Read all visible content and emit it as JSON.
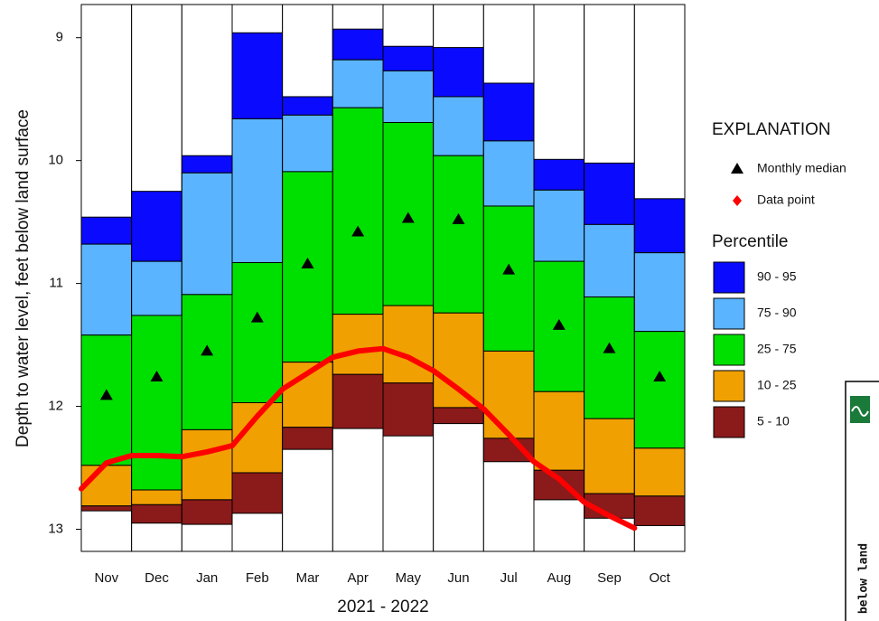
{
  "chart_data": {
    "type": "percentile",
    "x_label": "2021 - 2022",
    "y_label": "Depth to water level, feet below land surface",
    "categories": [
      "Nov",
      "Dec",
      "Jan",
      "Feb",
      "Mar",
      "Apr",
      "May",
      "Jun",
      "Jul",
      "Aug",
      "Sep",
      "Oct"
    ],
    "ylim": [
      8.73,
      13.18
    ],
    "y_inverted": true,
    "yticks": [
      9,
      10,
      11,
      12,
      13
    ],
    "legend_title": "EXPLANATION",
    "percentile_title": "Percentile",
    "series": [
      {
        "name": "90 - 95",
        "color": "#0a0aff",
        "values": [
          10.46,
          10.25,
          9.96,
          8.96,
          9.48,
          8.93,
          9.07,
          9.08,
          9.37,
          9.99,
          10.02,
          10.31
        ]
      },
      {
        "name": "75 - 90",
        "color": "#5ab4ff",
        "values": [
          10.68,
          10.82,
          10.1,
          9.66,
          9.63,
          9.18,
          9.27,
          9.48,
          9.84,
          10.24,
          10.52,
          10.75
        ]
      },
      {
        "name": "25 - 75",
        "color": "#00e000",
        "values": [
          11.42,
          11.26,
          11.09,
          10.83,
          10.09,
          9.57,
          9.69,
          9.96,
          10.37,
          10.82,
          11.11,
          11.39
        ]
      },
      {
        "name": "10 - 25",
        "color": "#f0a000",
        "values": [
          12.48,
          12.68,
          12.19,
          11.97,
          11.64,
          11.25,
          11.18,
          11.24,
          11.55,
          11.88,
          12.1,
          12.34
        ]
      },
      {
        "name": "5 - 10",
        "color": "#8b1a1a",
        "values": [
          12.81,
          12.8,
          12.76,
          12.54,
          12.17,
          11.74,
          11.81,
          12.01,
          12.26,
          12.52,
          12.71,
          12.73
        ]
      }
    ],
    "lower_bound_values": [
      12.85,
      12.95,
      12.96,
      12.87,
      12.35,
      12.18,
      12.24,
      12.14,
      12.45,
      12.76,
      12.91,
      12.97
    ],
    "median": {
      "name": "Monthly median",
      "color": "#000000",
      "values": [
        11.91,
        11.76,
        11.55,
        11.28,
        10.84,
        10.58,
        10.47,
        10.48,
        10.89,
        11.34,
        11.53,
        11.76
      ]
    },
    "data_points": {
      "name": "Data point",
      "color": "#ff0000",
      "values": [
        12.67,
        12.46,
        12.4,
        12.4,
        12.41,
        12.37,
        12.32,
        12.08,
        11.86,
        11.73,
        11.6,
        11.55,
        11.53,
        11.6,
        11.71,
        11.86,
        12.02,
        12.23,
        12.45,
        12.59,
        12.78,
        12.89,
        12.99
      ]
    }
  },
  "side_panel_text": "below land"
}
